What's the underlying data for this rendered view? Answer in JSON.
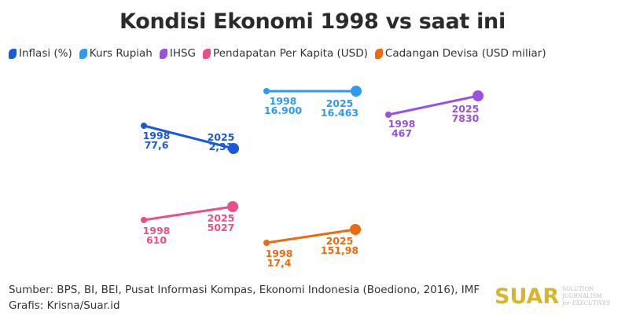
{
  "chart_data": {
    "type": "slope",
    "title": "Kondisi Ekonomi 1998 vs saat ini",
    "x": [
      "1998",
      "2025"
    ],
    "legend_position": "top-left",
    "series": [
      {
        "name": "Inflasi (%)",
        "color": "#1a5ad8",
        "values": [
          77.6,
          2.31
        ],
        "labels": [
          "77,6",
          "2,31"
        ]
      },
      {
        "name": "Kurs Rupiah",
        "color": "#2d9bf0",
        "values": [
          16900,
          16463
        ],
        "labels": [
          "16.900",
          "16.463"
        ]
      },
      {
        "name": "IHSG",
        "color": "#9a52dc",
        "values": [
          467,
          7830
        ],
        "labels": [
          "467",
          "7830"
        ]
      },
      {
        "name": "Pendapatan Per Kapita (USD)",
        "color": "#e9508a",
        "values": [
          610,
          5027
        ],
        "labels": [
          "610",
          "5027"
        ]
      },
      {
        "name": "Cadangan Devisa (USD miliar)",
        "color": "#ec6a10",
        "values": [
          17.4,
          151.98
        ],
        "labels": [
          "17,4",
          "151,98"
        ]
      }
    ]
  },
  "footer": {
    "source": "Sumber: BPS, BI, BEI, Pusat Informasi Kompas, Ekonomi Indonesia (Boediono, 2016), IMF",
    "credit": "Grafis: Krisna/Suar.id"
  },
  "logo": {
    "wordmark": "SUAR",
    "tagline1": "SOLUTION JOURNALISM",
    "tagline2": "for EXECUTIVES"
  }
}
